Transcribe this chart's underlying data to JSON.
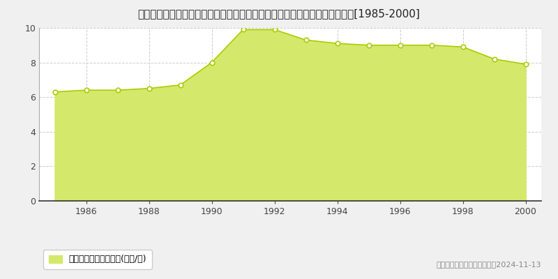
{
  "years": [
    1985,
    1986,
    1987,
    1988,
    1989,
    1990,
    1991,
    1992,
    1993,
    1994,
    1995,
    1996,
    1997,
    1998,
    1999,
    2000
  ],
  "values": [
    6.3,
    6.4,
    6.4,
    6.5,
    6.7,
    8.0,
    9.9,
    9.9,
    9.3,
    9.1,
    9.0,
    9.0,
    9.0,
    8.9,
    8.2,
    7.9
  ],
  "title": "愛知県愛知郡東郷町大字春木字上针廆間Ｕ８８番８５　公示地価　地価推移[1985-2000]",
  "fill_color": "#d4e96b",
  "line_color": "#aacc00",
  "marker_color": "white",
  "marker_edge_color": "#aacc00",
  "background_color": "#f0f0f0",
  "plot_bg_color": "#ffffff",
  "ylim": [
    0,
    10
  ],
  "yticks": [
    0,
    2,
    4,
    6,
    8,
    10
  ],
  "xtick_years": [
    1986,
    1988,
    1990,
    1992,
    1994,
    1996,
    1998,
    2000
  ],
  "legend_label": "公示地価　平均啶単価(万円/啶)",
  "copyright_text": "（Ｃ）土地価格ドットコム　2024-11-13",
  "grid_color": "#cccccc",
  "title_fontsize": 11,
  "tick_fontsize": 9,
  "legend_fontsize": 9,
  "copyright_fontsize": 8
}
